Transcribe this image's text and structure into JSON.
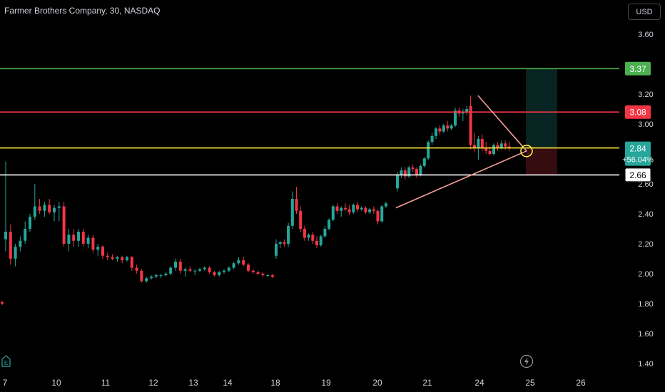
{
  "header": {
    "title": "Farmer Brothers Company, 30, NASDAQ",
    "currency_button": "USD"
  },
  "icons": {
    "earnings": "E",
    "event": "lightning-icon"
  },
  "colors": {
    "up": "#26a69a",
    "down": "#f23645",
    "background": "#000000",
    "target_line": "#4caf50",
    "red_line": "#f23645",
    "entry_line": "#ffeb3b",
    "support_line": "#ffffff",
    "trend_line": "#f7a09a"
  },
  "chart_data": {
    "type": "candlestick",
    "title": "Farmer Brothers Company, 30, NASDAQ",
    "ylim": [
      1.4,
      3.6
    ],
    "y_ticks": [
      "3.60",
      "3.20",
      "3.00",
      "2.60",
      "2.40",
      "2.20",
      "2.00",
      "1.80",
      "1.60",
      "1.40"
    ],
    "x_ticks": [
      "7",
      "10",
      "11",
      "12",
      "13",
      "14",
      "18",
      "19",
      "20",
      "21",
      "24",
      "25",
      "26"
    ],
    "horizontal_lines": [
      {
        "label": "3.37",
        "price": 3.37,
        "color": "#4caf50"
      },
      {
        "label": "3.08",
        "price": 3.08,
        "color": "#f23645"
      },
      {
        "label": "2.84",
        "sublabel": "+56.04%",
        "price": 2.84,
        "color": "#ffeb3b"
      },
      {
        "label": "2.66",
        "price": 2.66,
        "color": "#ffffff"
      }
    ],
    "candles": [
      [
        1.81,
        1.82,
        1.79,
        1.8
      ],
      [
        2.23,
        2.75,
        2.15,
        2.28
      ],
      [
        2.28,
        2.33,
        2.06,
        2.1
      ],
      [
        2.1,
        2.2,
        2.05,
        2.18
      ],
      [
        2.18,
        2.25,
        2.15,
        2.22
      ],
      [
        2.22,
        2.35,
        2.2,
        2.3
      ],
      [
        2.3,
        2.4,
        2.28,
        2.38
      ],
      [
        2.38,
        2.6,
        2.36,
        2.45
      ],
      [
        2.45,
        2.5,
        2.4,
        2.42
      ],
      [
        2.42,
        2.48,
        2.38,
        2.46
      ],
      [
        2.46,
        2.5,
        2.4,
        2.41
      ],
      [
        2.41,
        2.46,
        2.35,
        2.44
      ],
      [
        2.44,
        2.48,
        2.35,
        2.45
      ],
      [
        2.45,
        2.48,
        2.18,
        2.2
      ],
      [
        2.2,
        2.3,
        2.15,
        2.26
      ],
      [
        2.26,
        2.3,
        2.18,
        2.22
      ],
      [
        2.22,
        2.3,
        2.18,
        2.28
      ],
      [
        2.28,
        2.3,
        2.18,
        2.2
      ],
      [
        2.2,
        2.26,
        2.17,
        2.24
      ],
      [
        2.24,
        2.26,
        2.14,
        2.16
      ],
      [
        2.16,
        2.2,
        2.12,
        2.18
      ],
      [
        2.18,
        2.19,
        2.1,
        2.12
      ],
      [
        2.12,
        2.14,
        2.09,
        2.11
      ],
      [
        2.11,
        2.13,
        2.09,
        2.1
      ],
      [
        2.1,
        2.12,
        2.08,
        2.11
      ],
      [
        2.11,
        2.12,
        2.07,
        2.09
      ],
      [
        2.09,
        2.12,
        2.08,
        2.11
      ],
      [
        2.11,
        2.12,
        2.02,
        2.04
      ],
      [
        2.04,
        2.06,
        2.0,
        2.02
      ],
      [
        2.02,
        2.03,
        1.94,
        1.95
      ],
      [
        1.95,
        1.98,
        1.94,
        1.97
      ],
      [
        1.97,
        1.99,
        1.96,
        1.98
      ],
      [
        1.98,
        2.0,
        1.97,
        1.99
      ],
      [
        1.99,
        2.0,
        1.97,
        1.99
      ],
      [
        1.99,
        2.01,
        1.98,
        2.0
      ],
      [
        2.0,
        2.05,
        1.99,
        2.04
      ],
      [
        2.04,
        2.1,
        2.02,
        2.08
      ],
      [
        2.08,
        2.1,
        2.0,
        2.02
      ],
      [
        2.02,
        2.04,
        1.98,
        2.03
      ],
      [
        2.03,
        2.05,
        2.01,
        2.02
      ],
      [
        2.02,
        2.03,
        1.99,
        2.02
      ],
      [
        2.02,
        2.04,
        2.01,
        2.03
      ],
      [
        2.03,
        2.05,
        2.02,
        2.04
      ],
      [
        2.04,
        2.05,
        2.0,
        2.01
      ],
      [
        2.01,
        2.02,
        1.98,
        1.99
      ],
      [
        1.99,
        2.02,
        1.98,
        2.01
      ],
      [
        2.01,
        2.03,
        2.0,
        2.02
      ],
      [
        2.02,
        2.05,
        2.01,
        2.04
      ],
      [
        2.04,
        2.08,
        2.03,
        2.07
      ],
      [
        2.07,
        2.11,
        2.06,
        2.09
      ],
      [
        2.09,
        2.11,
        2.05,
        2.06
      ],
      [
        2.06,
        2.07,
        2.01,
        2.02
      ],
      [
        2.02,
        2.03,
        2.0,
        2.01
      ],
      [
        2.01,
        2.02,
        1.99,
        2.0
      ],
      [
        2.0,
        2.01,
        1.98,
        1.99
      ],
      [
        1.99,
        2.0,
        1.98,
        1.99
      ],
      [
        1.99,
        2.0,
        1.97,
        1.98
      ],
      [
        2.12,
        2.23,
        2.1,
        2.2
      ],
      [
        2.2,
        2.22,
        2.17,
        2.21
      ],
      [
        2.21,
        2.23,
        2.18,
        2.2
      ],
      [
        2.2,
        2.34,
        2.18,
        2.32
      ],
      [
        2.32,
        2.55,
        2.3,
        2.5
      ],
      [
        2.5,
        2.58,
        2.4,
        2.42
      ],
      [
        2.42,
        2.45,
        2.28,
        2.3
      ],
      [
        2.3,
        2.32,
        2.22,
        2.24
      ],
      [
        2.24,
        2.27,
        2.22,
        2.26
      ],
      [
        2.26,
        2.28,
        2.2,
        2.22
      ],
      [
        2.22,
        2.25,
        2.17,
        2.19
      ],
      [
        2.19,
        2.26,
        2.18,
        2.25
      ],
      [
        2.25,
        2.32,
        2.24,
        2.3
      ],
      [
        2.3,
        2.37,
        2.29,
        2.36
      ],
      [
        2.36,
        2.46,
        2.35,
        2.45
      ],
      [
        2.45,
        2.47,
        2.4,
        2.42
      ],
      [
        2.42,
        2.45,
        2.38,
        2.44
      ],
      [
        2.44,
        2.47,
        2.42,
        2.43
      ],
      [
        2.43,
        2.46,
        2.39,
        2.41
      ],
      [
        2.41,
        2.47,
        2.4,
        2.46
      ],
      [
        2.46,
        2.48,
        2.41,
        2.43
      ],
      [
        2.43,
        2.45,
        2.42,
        2.44
      ],
      [
        2.44,
        2.45,
        2.4,
        2.41
      ],
      [
        2.41,
        2.44,
        2.4,
        2.43
      ],
      [
        2.43,
        2.45,
        2.4,
        2.42
      ],
      [
        2.42,
        2.43,
        2.33,
        2.35
      ],
      [
        2.35,
        2.46,
        2.34,
        2.45
      ],
      [
        2.45,
        2.48,
        2.44,
        2.47
      ],
      [
        2.57,
        2.68,
        2.55,
        2.66
      ],
      [
        2.66,
        2.71,
        2.64,
        2.69
      ],
      [
        2.69,
        2.71,
        2.63,
        2.65
      ],
      [
        2.65,
        2.72,
        2.64,
        2.71
      ],
      [
        2.71,
        2.73,
        2.68,
        2.7
      ],
      [
        2.7,
        2.71,
        2.64,
        2.66
      ],
      [
        2.66,
        2.73,
        2.65,
        2.72
      ],
      [
        2.72,
        2.78,
        2.71,
        2.77
      ],
      [
        2.77,
        2.89,
        2.76,
        2.88
      ],
      [
        2.88,
        2.94,
        2.86,
        2.92
      ],
      [
        2.92,
        2.98,
        2.9,
        2.97
      ],
      [
        2.97,
        2.99,
        2.93,
        2.95
      ],
      [
        2.95,
        3.0,
        2.94,
        2.99
      ],
      [
        2.99,
        3.02,
        2.95,
        2.97
      ],
      [
        2.97,
        3.0,
        2.96,
        2.99
      ],
      [
        2.99,
        3.11,
        2.98,
        3.09
      ],
      [
        3.09,
        3.11,
        3.05,
        3.07
      ],
      [
        3.07,
        3.1,
        3.02,
        3.08
      ],
      [
        3.08,
        3.12,
        3.06,
        3.1
      ],
      [
        3.12,
        3.19,
        2.83,
        2.86
      ],
      [
        2.86,
        2.94,
        2.81,
        2.84
      ],
      [
        2.84,
        2.92,
        2.76,
        2.9
      ],
      [
        2.9,
        2.93,
        2.82,
        2.84
      ],
      [
        2.84,
        2.88,
        2.8,
        2.82
      ],
      [
        2.82,
        2.85,
        2.79,
        2.8
      ],
      [
        2.8,
        2.87,
        2.79,
        2.86
      ],
      [
        2.86,
        2.88,
        2.82,
        2.84
      ],
      [
        2.84,
        2.89,
        2.83,
        2.87
      ],
      [
        2.87,
        2.89,
        2.83,
        2.85
      ],
      [
        2.85,
        2.88,
        2.82,
        2.84
      ]
    ]
  }
}
